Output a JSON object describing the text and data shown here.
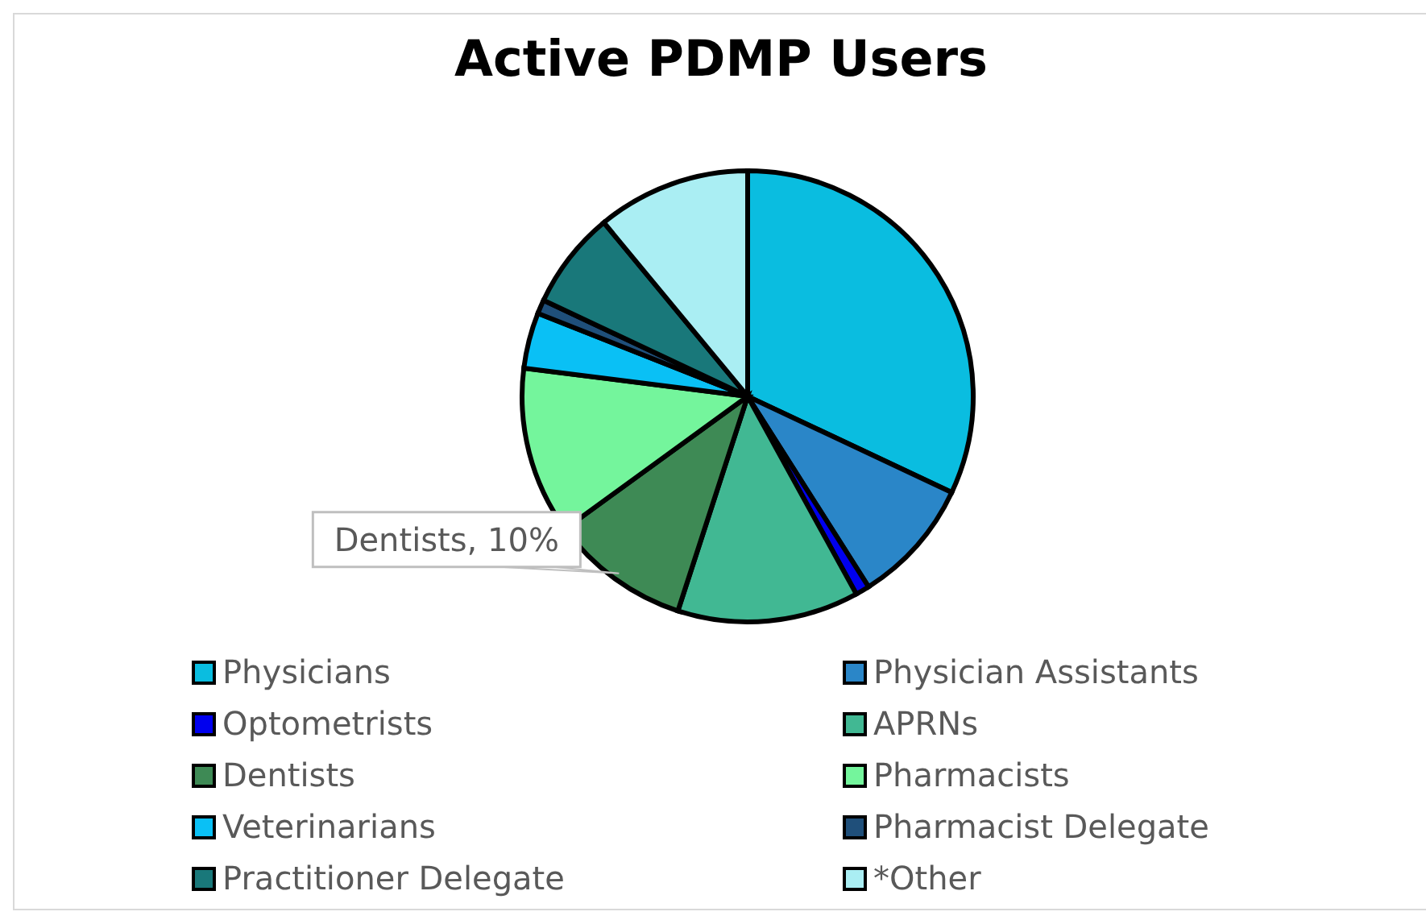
{
  "chart_data": {
    "type": "pie",
    "title": "Active PDMP Users",
    "categories": [
      "Physicians",
      "Physician Assistants",
      "Optometrists",
      "APRNs",
      "Dentists",
      "Pharmacists",
      "Veterinarians",
      "Pharmacist Delegate",
      "Practitioner Delegate",
      "*Other"
    ],
    "values": [
      32,
      9,
      1,
      13,
      10,
      12,
      4,
      1,
      7,
      11
    ],
    "colors": [
      "#0abde0",
      "#2a86c8",
      "#0000ee",
      "#41b893",
      "#3e8a55",
      "#74f59c",
      "#0ac0f5",
      "#1f4f7a",
      "#19787a",
      "#aaeef3"
    ],
    "value_labels": [
      null,
      null,
      null,
      null,
      "Dentists, 10%",
      null,
      null,
      null,
      null,
      null
    ],
    "legend": "bottom"
  }
}
